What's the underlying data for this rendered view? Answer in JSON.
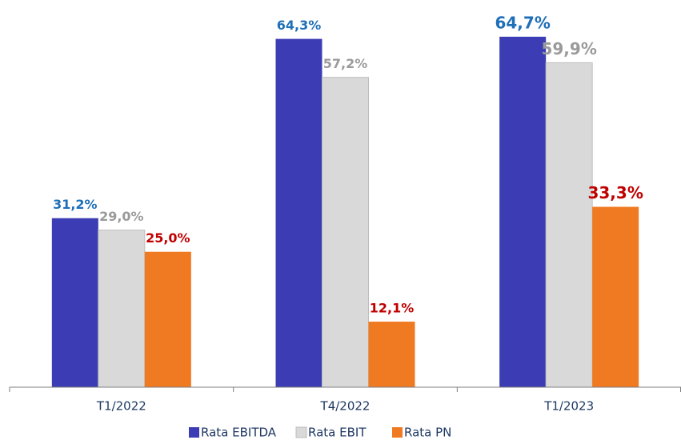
{
  "chart_data": {
    "type": "bar",
    "categories": [
      "T1/2022",
      "T4/2022",
      "T1/2023"
    ],
    "series": [
      {
        "name": "Rata EBITDA",
        "color": "#3c3db4",
        "label_color": "#1f6fb8",
        "values": [
          31.2,
          64.3,
          64.7
        ],
        "value_labels": [
          "31,2%",
          "64,3%",
          "64,7%"
        ]
      },
      {
        "name": "Rata EBIT",
        "color": "#d9d9d9",
        "label_color": "#9a9a9a",
        "values": [
          29.0,
          57.2,
          59.9
        ],
        "value_labels": [
          "29,0%",
          "57,2%",
          "59,9%"
        ]
      },
      {
        "name": "Rata PN",
        "color": "#f07a21",
        "label_color": "#c00000",
        "values": [
          25.0,
          12.1,
          33.3
        ],
        "value_labels": [
          "25,0%",
          "12,1%",
          "33,3%"
        ]
      }
    ],
    "ylim": [
      0,
      70
    ],
    "legend": "bottom"
  }
}
